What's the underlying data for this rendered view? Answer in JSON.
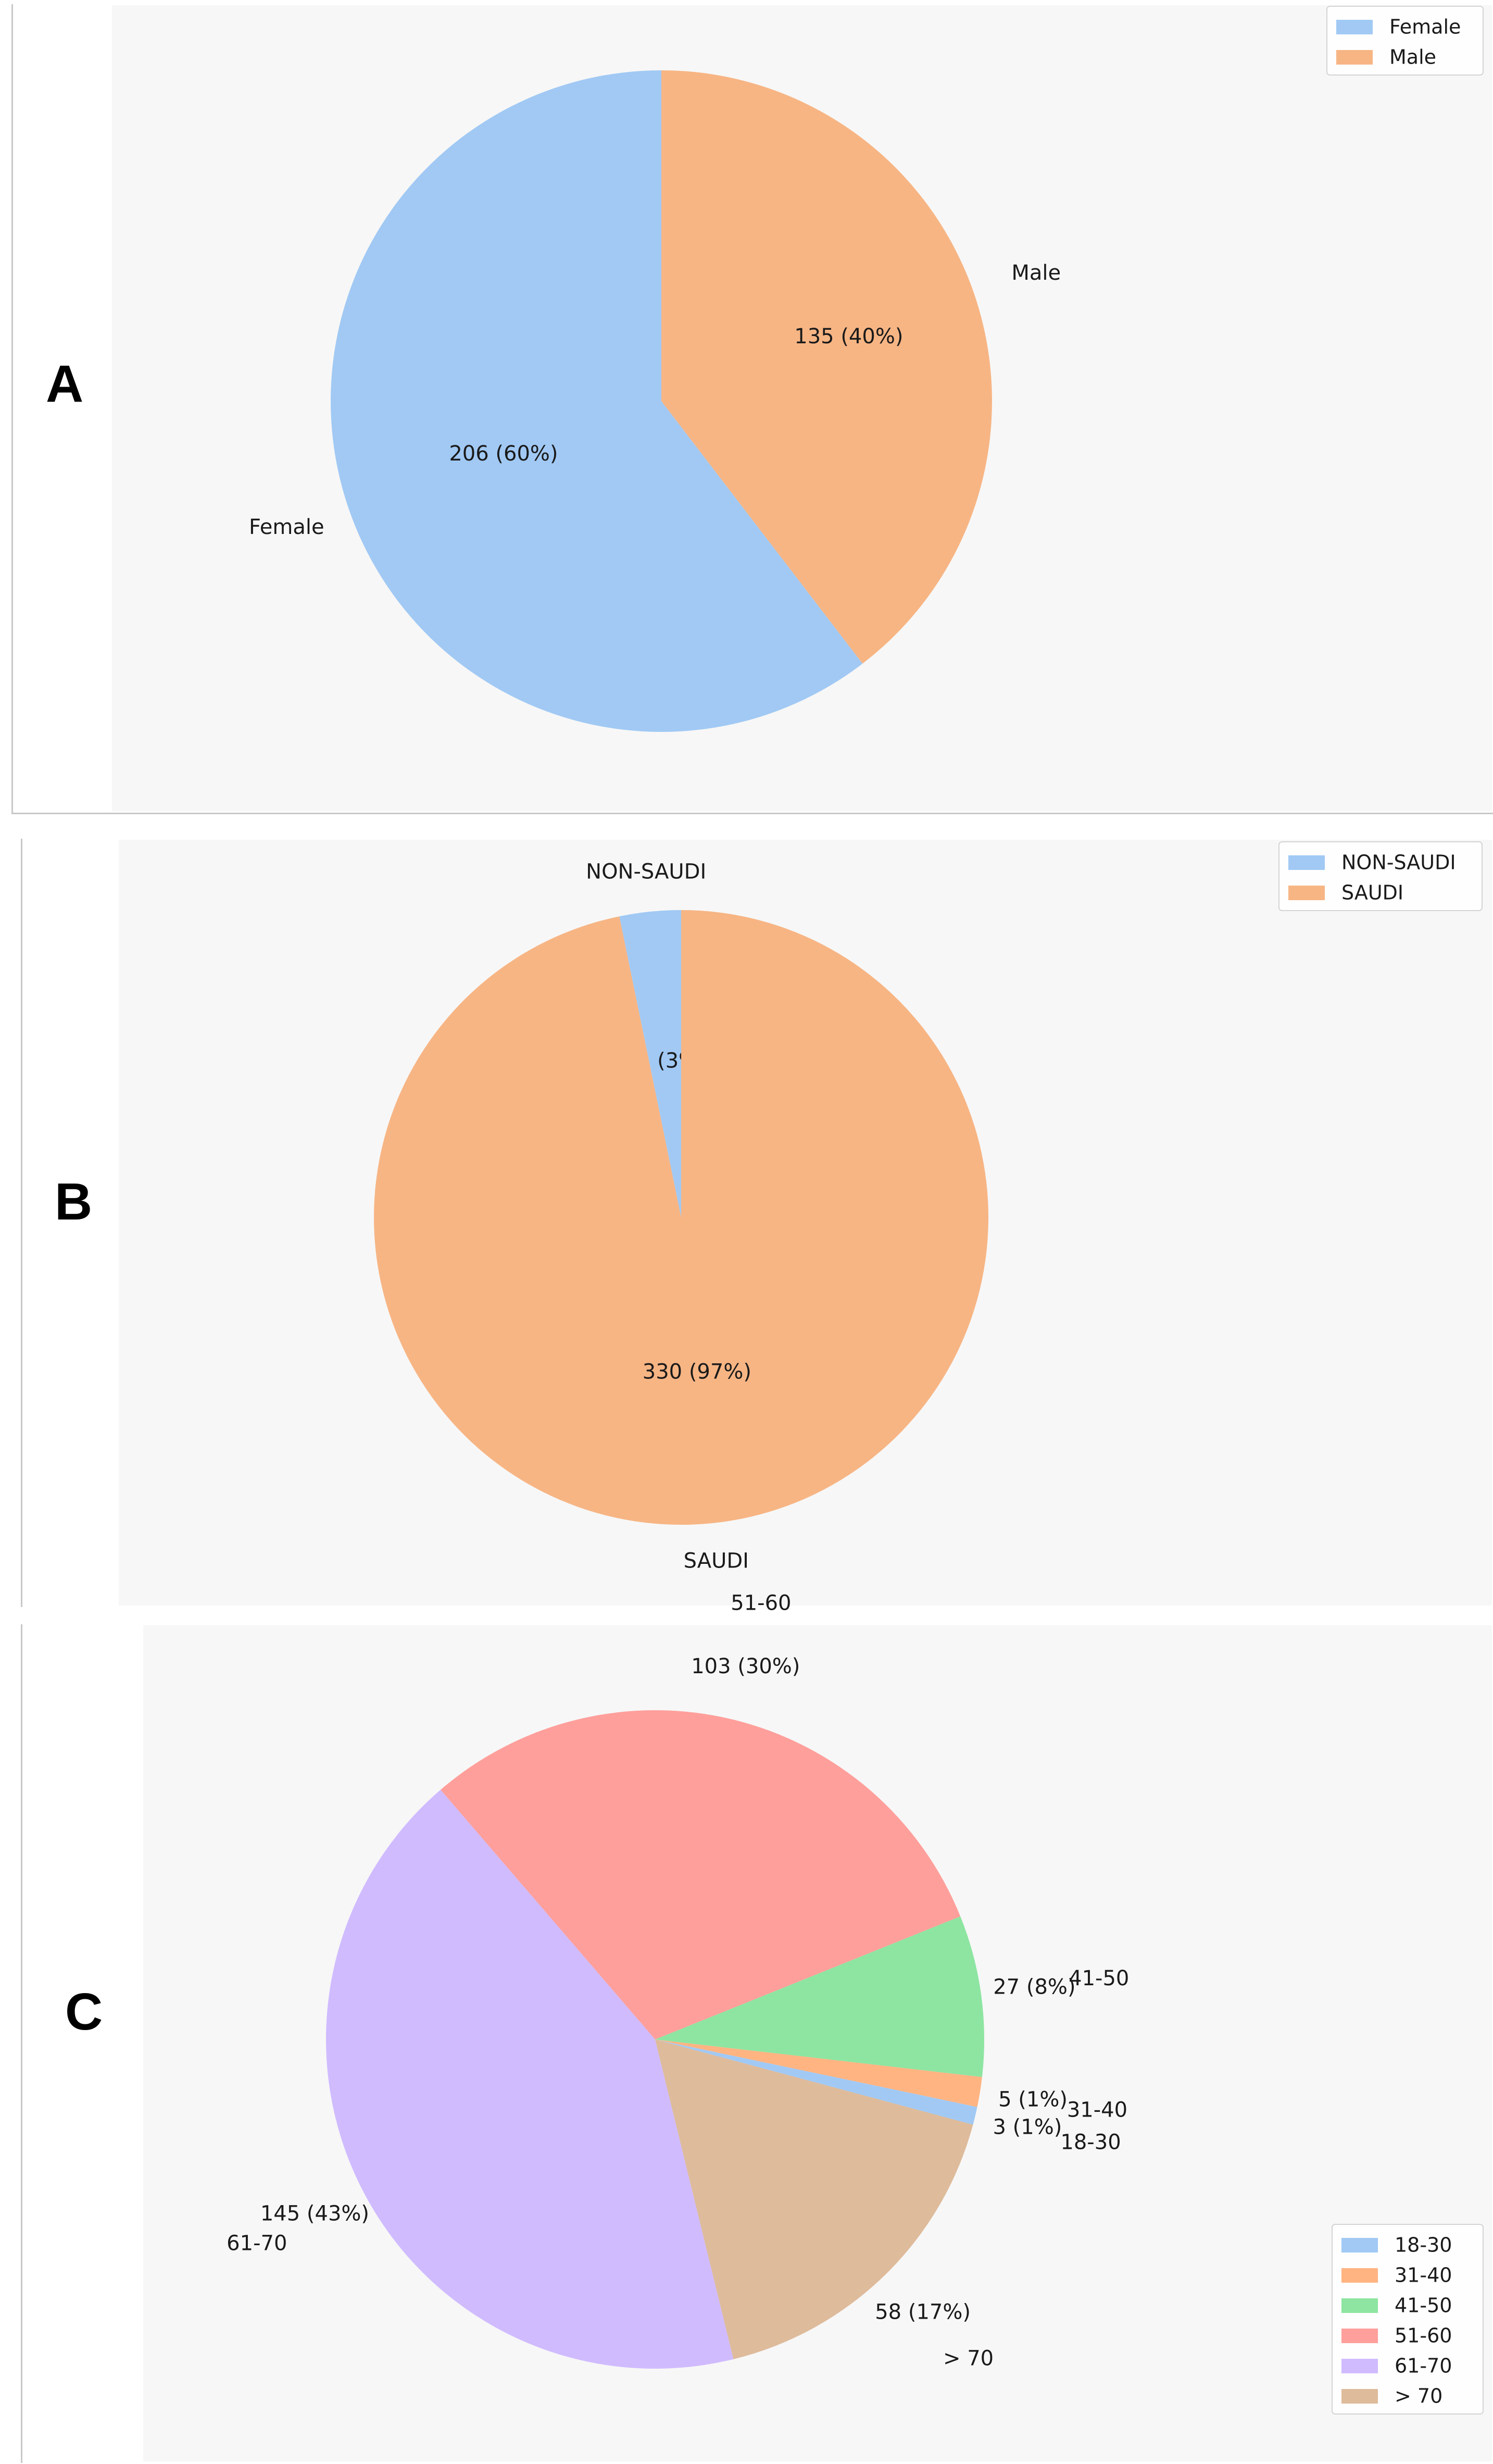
{
  "panels": [
    {
      "letter": "A"
    },
    {
      "letter": "B"
    },
    {
      "letter": "C"
    }
  ],
  "chart_data": [
    {
      "type": "pie",
      "panel": "A",
      "categories": [
        "Female",
        "Male"
      ],
      "values": [
        206,
        135
      ],
      "percent_labels": [
        "206 (60%)",
        "135 (40%)"
      ],
      "colors": [
        "#a1c9f4",
        "#f7b584"
      ],
      "legend": [
        "Female",
        "Male"
      ],
      "legend_placement": "top-right",
      "start_angle_deg": 90,
      "direction": "counterclockwise"
    },
    {
      "type": "pie",
      "panel": "B",
      "categories": [
        "NON-SAUDI",
        "SAUDI"
      ],
      "values": [
        11,
        330
      ],
      "percent_labels": [
        "11 (3%)",
        "330 (97%)"
      ],
      "colors": [
        "#a1c9f4",
        "#f7b584"
      ],
      "legend": [
        "NON-SAUDI",
        "SAUDI"
      ],
      "legend_placement": "top-right",
      "start_angle_deg": 90,
      "direction": "counterclockwise"
    },
    {
      "type": "pie",
      "panel": "C",
      "categories": [
        "18-30",
        "31-40",
        "41-50",
        "51-60",
        "61-70",
        "> 70"
      ],
      "values": [
        3,
        5,
        27,
        103,
        145,
        58
      ],
      "percent_labels": [
        "3 (1%)",
        "5 (1%)",
        "27 (8%)",
        "103 (30%)",
        "145 (43%)",
        "58 (17%)"
      ],
      "colors": [
        "#a1c9f4",
        "#ffb482",
        "#8de5a1",
        "#ff9f9b",
        "#d0bbff",
        "#debb9b"
      ],
      "legend": [
        "18-30",
        "31-40",
        "41-50",
        "51-60",
        "61-70",
        "> 70"
      ],
      "legend_placement": "bottom-right",
      "start_angle_deg": 345,
      "direction": "counterclockwise"
    }
  ]
}
